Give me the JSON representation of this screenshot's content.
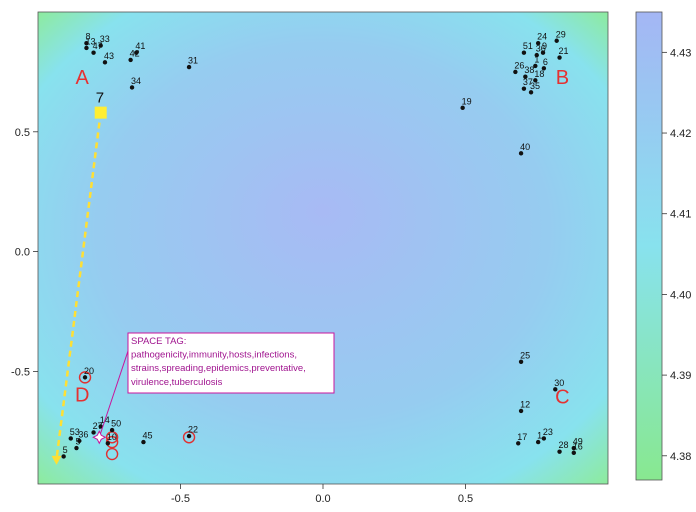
{
  "chart_data": {
    "type": "scatter",
    "title": "",
    "xlabel": "",
    "ylabel": "",
    "xlim": [
      -1.0,
      1.0
    ],
    "ylim": [
      -0.97,
      1.0
    ],
    "x_ticks": [
      "-0.5",
      "0.0",
      "0.5"
    ],
    "x_tick_values": [
      -0.5,
      0.0,
      0.5
    ],
    "y_ticks": [
      "-0.5",
      "0.0",
      "0.5"
    ],
    "y_tick_values": [
      -0.5,
      0.0,
      0.5
    ],
    "grid": false,
    "background": "heatmap",
    "colorbar": {
      "ticks": [
        "4.43",
        "4.42",
        "4.41",
        "4.40",
        "4.39",
        "4.38"
      ],
      "tick_values": [
        4.43,
        4.42,
        4.41,
        4.4,
        4.39,
        4.38
      ],
      "range": [
        4.377,
        4.435
      ],
      "low_color": "#88e890",
      "mid_color": "#88e2ee",
      "high_color": "#a4b6f4"
    },
    "corner_labels": [
      {
        "text": "A",
        "x": -0.845,
        "y": 0.7
      },
      {
        "text": "B",
        "x": 0.84,
        "y": 0.7
      },
      {
        "text": "C",
        "x": 0.84,
        "y": -0.635
      },
      {
        "text": "D",
        "x": -0.845,
        "y": -0.625
      }
    ],
    "points": [
      {
        "label": "8",
        "x": -0.83,
        "y": 0.87
      },
      {
        "label": "33",
        "x": -0.78,
        "y": 0.86
      },
      {
        "label": "13",
        "x": -0.83,
        "y": 0.85
      },
      {
        "label": "47",
        "x": -0.805,
        "y": 0.83
      },
      {
        "label": "43",
        "x": -0.765,
        "y": 0.79
      },
      {
        "label": "42",
        "x": -0.675,
        "y": 0.8
      },
      {
        "label": "41",
        "x": -0.655,
        "y": 0.83
      },
      {
        "label": "34",
        "x": -0.67,
        "y": 0.685
      },
      {
        "label": "31",
        "x": -0.47,
        "y": 0.77
      },
      {
        "label": "19",
        "x": 0.49,
        "y": 0.6
      },
      {
        "label": "40",
        "x": 0.695,
        "y": 0.41
      },
      {
        "label": "51",
        "x": 0.705,
        "y": 0.83
      },
      {
        "label": "24",
        "x": 0.755,
        "y": 0.87
      },
      {
        "label": "29",
        "x": 0.82,
        "y": 0.88
      },
      {
        "label": "21",
        "x": 0.83,
        "y": 0.81
      },
      {
        "label": "36",
        "x": 0.75,
        "y": 0.82
      },
      {
        "label": "9",
        "x": 0.772,
        "y": 0.83
      },
      {
        "label": "26",
        "x": 0.675,
        "y": 0.75
      },
      {
        "label": "1",
        "x": 0.745,
        "y": 0.775
      },
      {
        "label": "6",
        "x": 0.775,
        "y": 0.765
      },
      {
        "label": "38",
        "x": 0.71,
        "y": 0.73
      },
      {
        "label": "18",
        "x": 0.745,
        "y": 0.715
      },
      {
        "label": "37",
        "x": 0.705,
        "y": 0.68
      },
      {
        "label": "35",
        "x": 0.73,
        "y": 0.665
      },
      {
        "label": "25",
        "x": 0.695,
        "y": -0.46
      },
      {
        "label": "30",
        "x": 0.815,
        "y": -0.575
      },
      {
        "label": "12",
        "x": 0.695,
        "y": -0.665
      },
      {
        "label": "17",
        "x": 0.685,
        "y": -0.8
      },
      {
        "label": "1",
        "x": 0.755,
        "y": -0.795
      },
      {
        "label": "23",
        "x": 0.775,
        "y": -0.78
      },
      {
        "label": "28",
        "x": 0.83,
        "y": -0.835
      },
      {
        "label": "49",
        "x": 0.88,
        "y": -0.82
      },
      {
        "label": "16",
        "x": 0.88,
        "y": -0.84
      },
      {
        "label": "20",
        "x": -0.835,
        "y": -0.525
      },
      {
        "label": "5",
        "x": -0.91,
        "y": -0.855
      },
      {
        "label": "53",
        "x": -0.885,
        "y": -0.78
      },
      {
        "label": "36",
        "x": -0.855,
        "y": -0.79
      },
      {
        "label": "5",
        "x": -0.865,
        "y": -0.82
      },
      {
        "label": "27",
        "x": -0.805,
        "y": -0.755
      },
      {
        "label": "14",
        "x": -0.78,
        "y": -0.73
      },
      {
        "label": "50",
        "x": -0.74,
        "y": -0.745
      },
      {
        "label": "10",
        "x": -0.755,
        "y": -0.8
      },
      {
        "label": "45",
        "x": -0.63,
        "y": -0.795
      },
      {
        "label": "22",
        "x": -0.47,
        "y": -0.77
      }
    ],
    "circled_points": [
      {
        "x": -0.835,
        "y": -0.525
      },
      {
        "x": -0.74,
        "y": -0.775
      },
      {
        "x": -0.74,
        "y": -0.795
      },
      {
        "x": -0.74,
        "y": -0.845
      },
      {
        "x": -0.47,
        "y": -0.775
      }
    ],
    "selected_point": {
      "label": "7",
      "x": -0.78,
      "y": 0.58
    },
    "arrow_target": {
      "x": -0.935,
      "y": -0.89
    },
    "tag_anchor": {
      "x": -0.785,
      "y": -0.775
    },
    "space_tag": {
      "lines": [
        "SPACE TAG:",
        "pathogenicity,immunity,hosts,infections,",
        "strains,spreading,epidemics,preventative,",
        "virulence,tuberculosis"
      ]
    },
    "colors": {
      "point": "#111111",
      "corner_label": "#e53131",
      "circle": "#e03030",
      "selected": "#ffee33",
      "arrow": "#ffe033",
      "tag": "#c8169c"
    }
  }
}
